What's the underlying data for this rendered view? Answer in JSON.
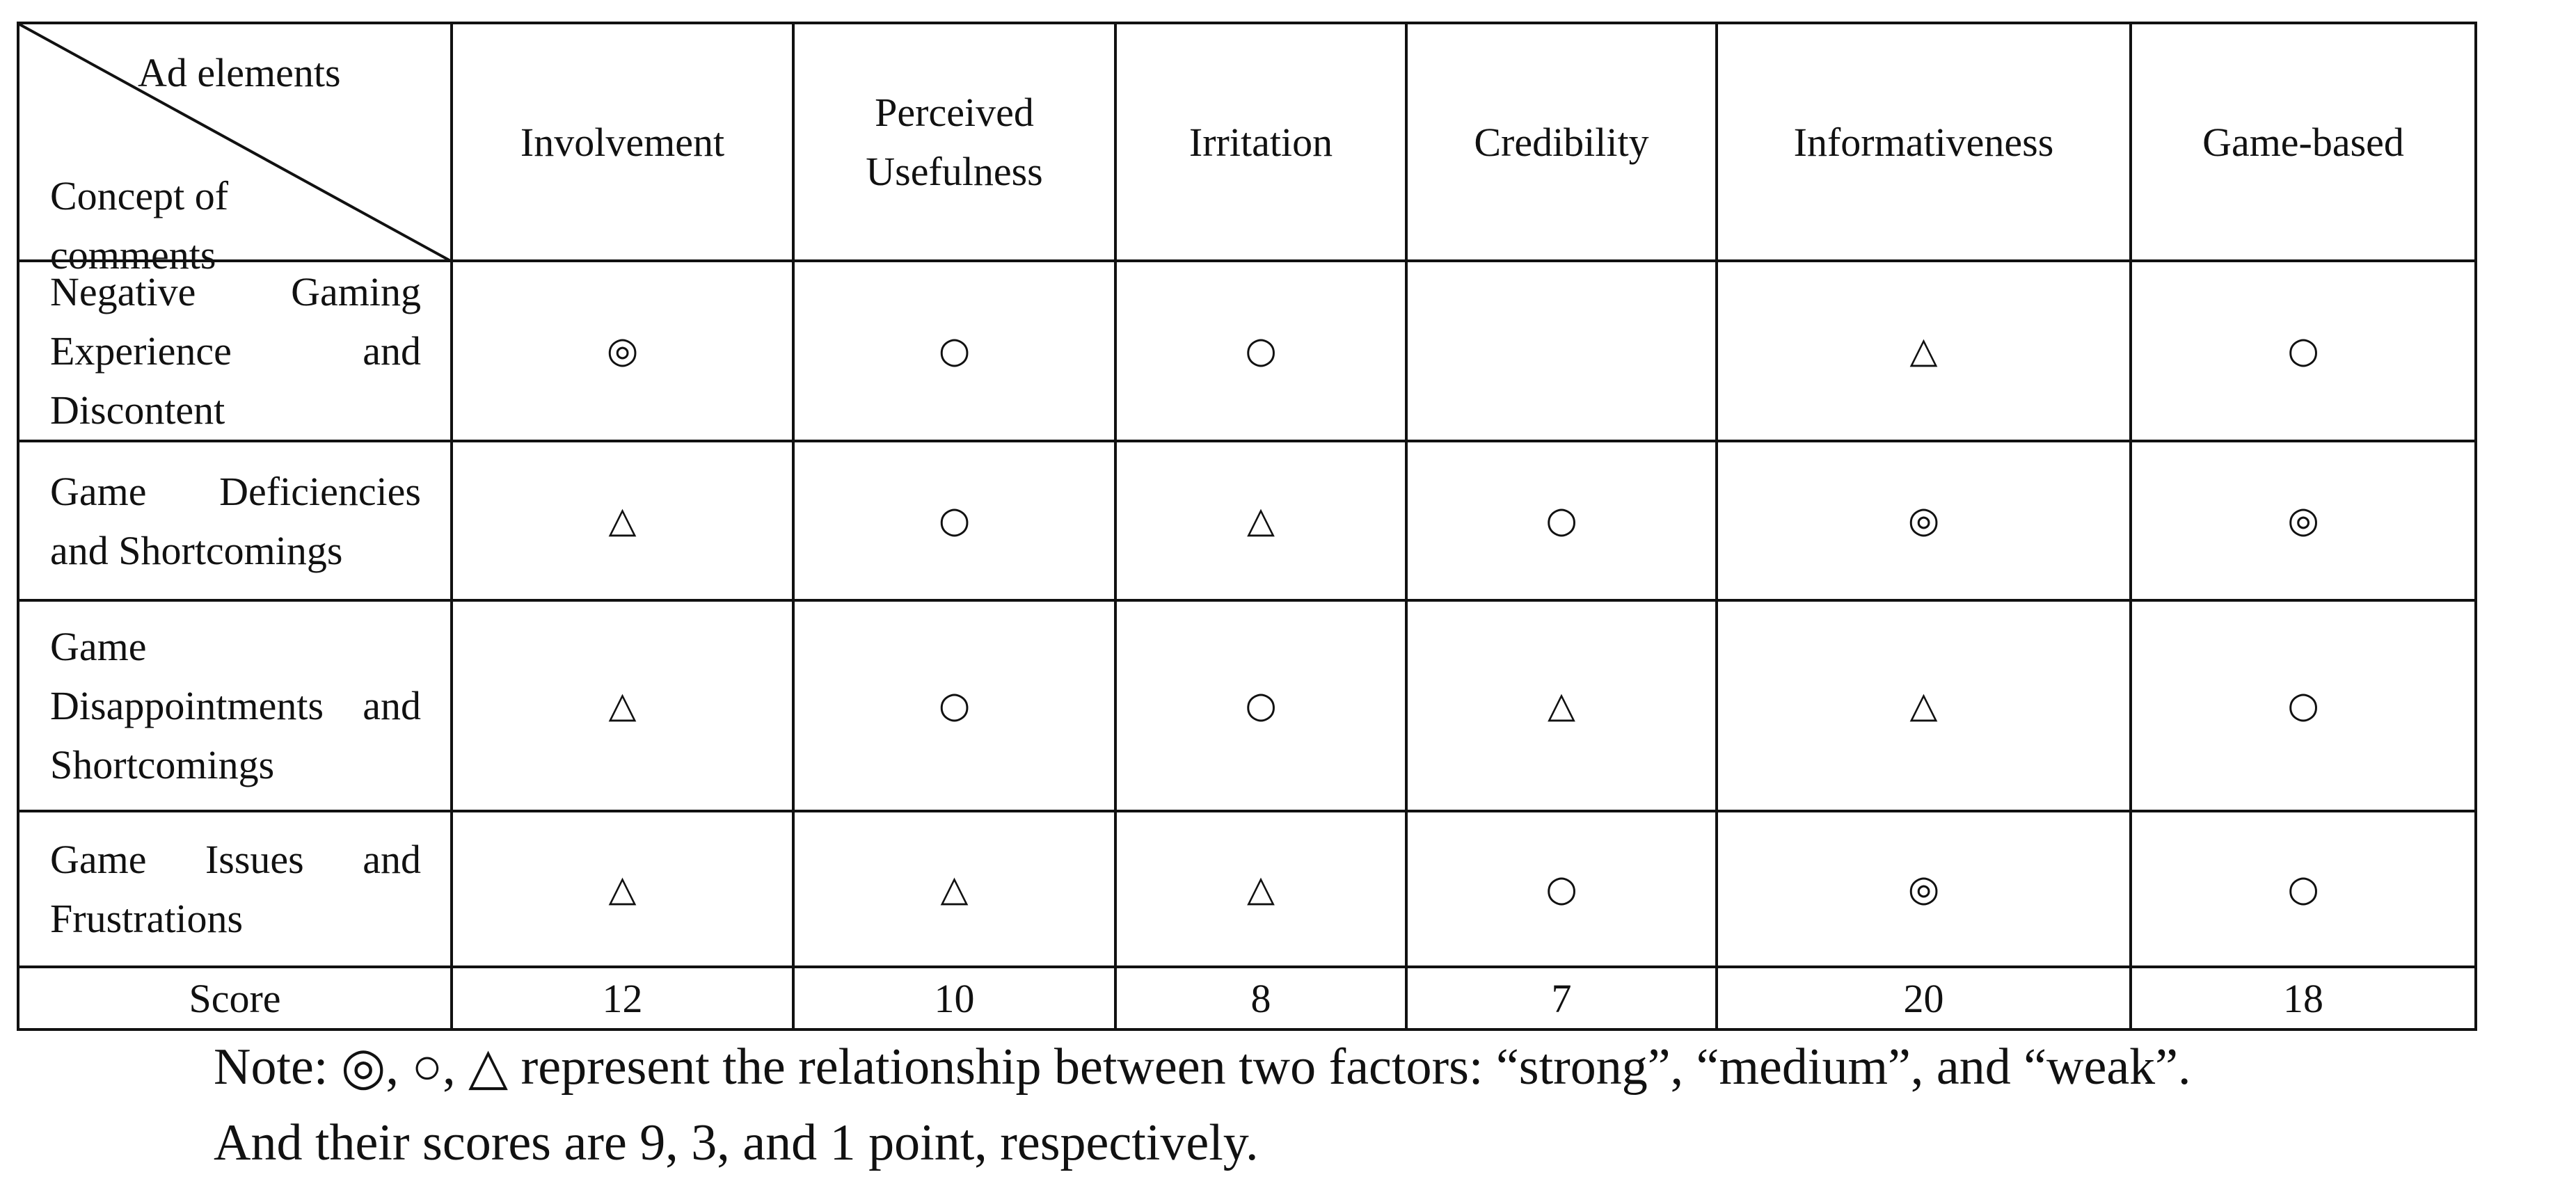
{
  "header": {
    "corner_top": "Ad elements",
    "corner_bottom": "Concept of comments",
    "columns": [
      "Involvement",
      "Perceived Usefulness",
      "Irritation",
      "Credibility",
      "Informativeness",
      "Game-based"
    ]
  },
  "table": {
    "rows": [
      {
        "label": "Negative Gaming Experience and Discontent",
        "cells": [
          "◎",
          "○",
          "○",
          null,
          "△",
          "○"
        ]
      },
      {
        "label": "Game Deficiencies and Shortcomings",
        "cells": [
          "△",
          "○",
          "△",
          "○",
          "◎",
          "◎"
        ]
      },
      {
        "label": "Game Disappointments and Shortcomings",
        "cells": [
          "△",
          "○",
          "○",
          "△",
          "△",
          "○"
        ]
      },
      {
        "label": "Game Issues and Frustrations",
        "cells": [
          "△",
          "△",
          "△",
          "○",
          "◎",
          "○"
        ]
      }
    ],
    "score_label": "Score",
    "scores": [
      12,
      10,
      8,
      7,
      20,
      18
    ]
  },
  "note": {
    "lines": [
      "Note: ◎, ○, △ represent the relationship between two factors: “strong”, “medium”, and “weak”.",
      "And their scores are 9, 3, and 1 point, respectively."
    ]
  }
}
